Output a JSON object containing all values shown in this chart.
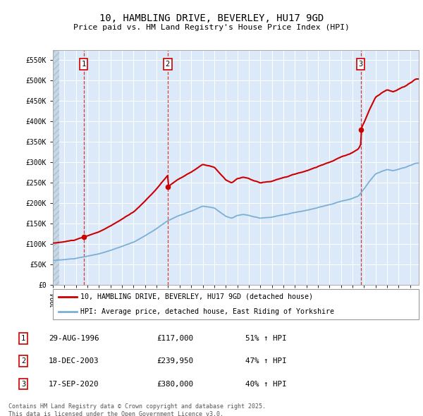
{
  "title": "10, HAMBLING DRIVE, BEVERLEY, HU17 9GD",
  "subtitle": "Price paid vs. HM Land Registry's House Price Index (HPI)",
  "legend_label_red": "10, HAMBLING DRIVE, BEVERLEY, HU17 9GD (detached house)",
  "legend_label_blue": "HPI: Average price, detached house, East Riding of Yorkshire",
  "sale_info": [
    [
      "1",
      "29-AUG-1996",
      "£117,000",
      "51% ↑ HPI"
    ],
    [
      "2",
      "18-DEC-2003",
      "£239,950",
      "47% ↑ HPI"
    ],
    [
      "3",
      "17-SEP-2020",
      "£380,000",
      "40% ↑ HPI"
    ]
  ],
  "footer": "Contains HM Land Registry data © Crown copyright and database right 2025.\nThis data is licensed under the Open Government Licence v3.0.",
  "ylim": [
    0,
    575000
  ],
  "yticks": [
    0,
    50000,
    100000,
    150000,
    200000,
    250000,
    300000,
    350000,
    400000,
    450000,
    500000,
    550000
  ],
  "ytick_labels": [
    "£0",
    "£50K",
    "£100K",
    "£150K",
    "£200K",
    "£250K",
    "£300K",
    "£350K",
    "£400K",
    "£450K",
    "£500K",
    "£550K"
  ],
  "background_color": "#dce9f8",
  "grid_color": "#ffffff",
  "red_color": "#cc0000",
  "blue_color": "#7ab0d4",
  "sale_times": [
    1996.662,
    2003.962,
    2020.712
  ],
  "sale_prices": [
    117000,
    239950,
    380000
  ],
  "sale_labels": [
    "1",
    "2",
    "3"
  ],
  "xmin": 1994.0,
  "xmax": 2025.75
}
